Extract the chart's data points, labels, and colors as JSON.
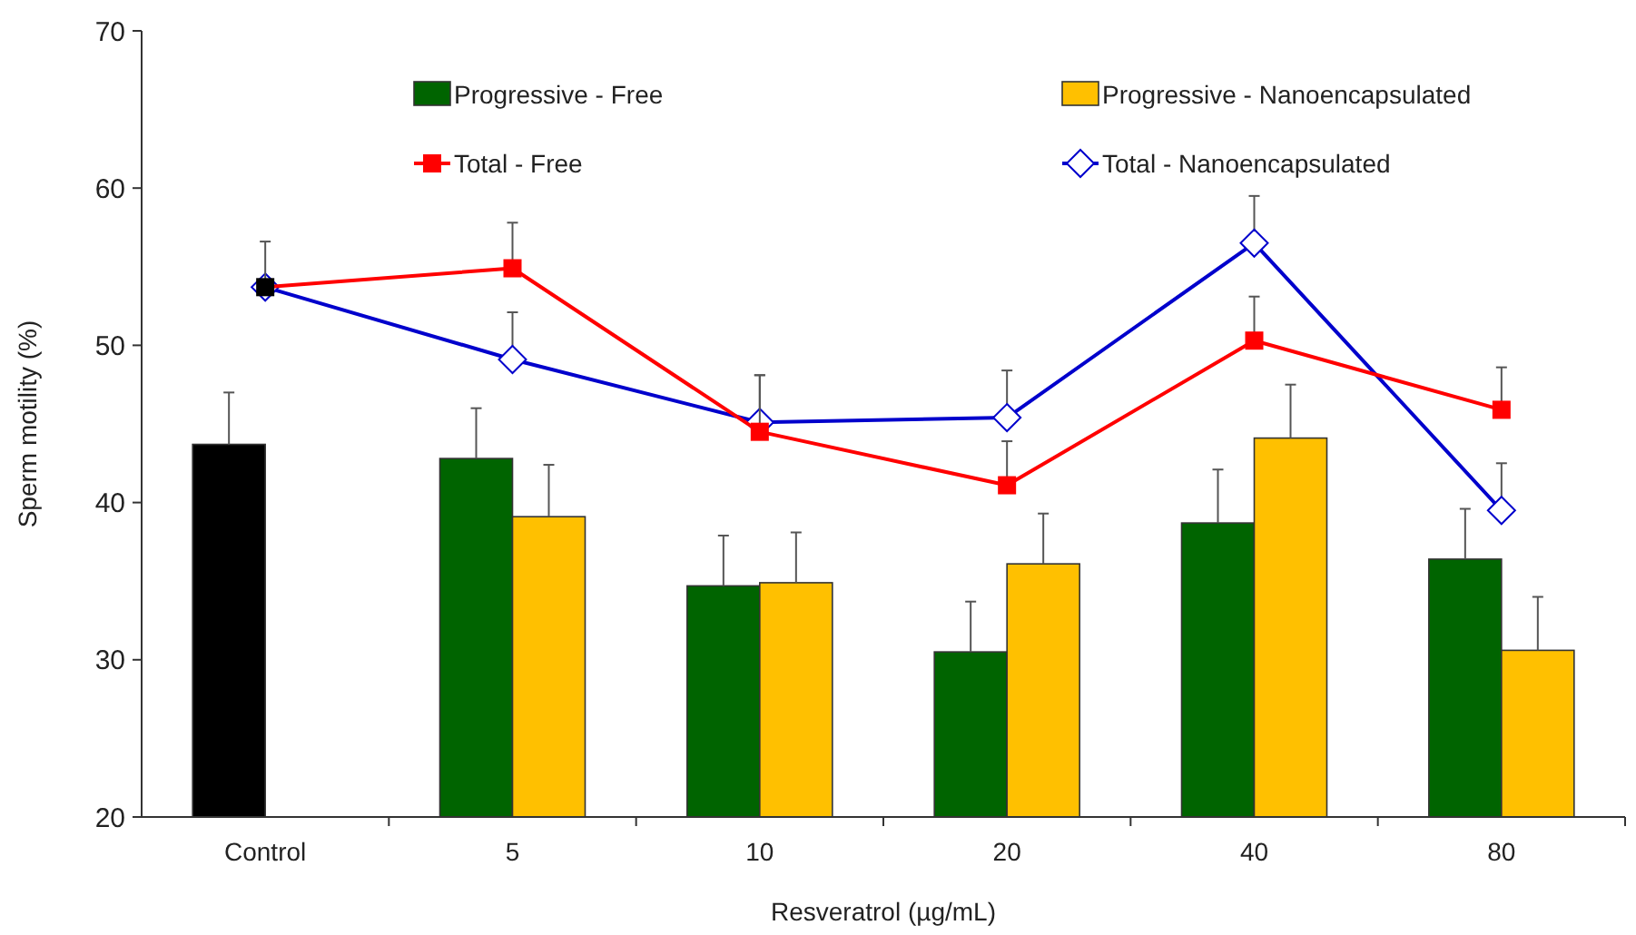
{
  "chart_data": {
    "type": "bar",
    "xlabel": "Resveratrol (µg/mL)",
    "ylabel": "Sperm motility (%)",
    "categories": [
      "Control",
      "5",
      "10",
      "20",
      "40",
      "80"
    ],
    "ylim": [
      20,
      70
    ],
    "yticks": [
      20,
      30,
      40,
      50,
      60,
      70
    ],
    "grid": false,
    "legend": "top",
    "series": [
      {
        "name": "Progressive - Free",
        "color": "#006400",
        "colors": [
          "#000000",
          "#006400",
          "#006400",
          "#006400",
          "#006400",
          "#006400"
        ],
        "values": [
          43.7,
          42.8,
          34.7,
          30.5,
          38.7,
          36.4
        ],
        "errors": [
          [
            43.7,
            47.0
          ],
          [
            42.8,
            46.0
          ],
          [
            34.7,
            37.9
          ],
          [
            30.5,
            33.7
          ],
          [
            38.7,
            42.1
          ],
          [
            36.4,
            39.6
          ]
        ]
      },
      {
        "name": "Progressive - Nanoencapsulated",
        "color": "#ffc000",
        "values": [
          null,
          39.1,
          34.9,
          36.1,
          44.1,
          30.6
        ],
        "errors": [
          null,
          [
            39.1,
            42.4
          ],
          [
            34.9,
            38.1
          ],
          [
            36.1,
            39.3
          ],
          [
            44.1,
            47.5
          ],
          [
            30.6,
            34.0
          ]
        ]
      },
      {
        "name": "Total - Free",
        "type": "line",
        "marker": "square",
        "color": "#ff0000",
        "colors": [
          "#000000",
          "#ff0000",
          "#ff0000",
          "#ff0000",
          "#ff0000",
          "#ff0000"
        ],
        "values": [
          53.7,
          54.9,
          44.5,
          41.1,
          50.3,
          45.9
        ],
        "errors": [
          [
            53.7,
            56.6
          ],
          [
            54.9,
            57.8
          ],
          [
            44.5,
            48.1
          ],
          [
            41.1,
            43.9
          ],
          [
            50.3,
            53.1
          ],
          [
            45.9,
            48.6
          ]
        ]
      },
      {
        "name": "Total - Nanoencapsulated",
        "type": "line",
        "marker": "diamond",
        "color": "#0000cc",
        "values": [
          53.7,
          49.1,
          45.1,
          45.4,
          56.5,
          39.5
        ],
        "errors": [
          null,
          [
            49.1,
            52.1
          ],
          [
            45.1,
            48.1
          ],
          [
            45.4,
            48.4
          ],
          [
            56.5,
            59.5
          ],
          [
            39.5,
            42.5
          ]
        ]
      }
    ]
  }
}
